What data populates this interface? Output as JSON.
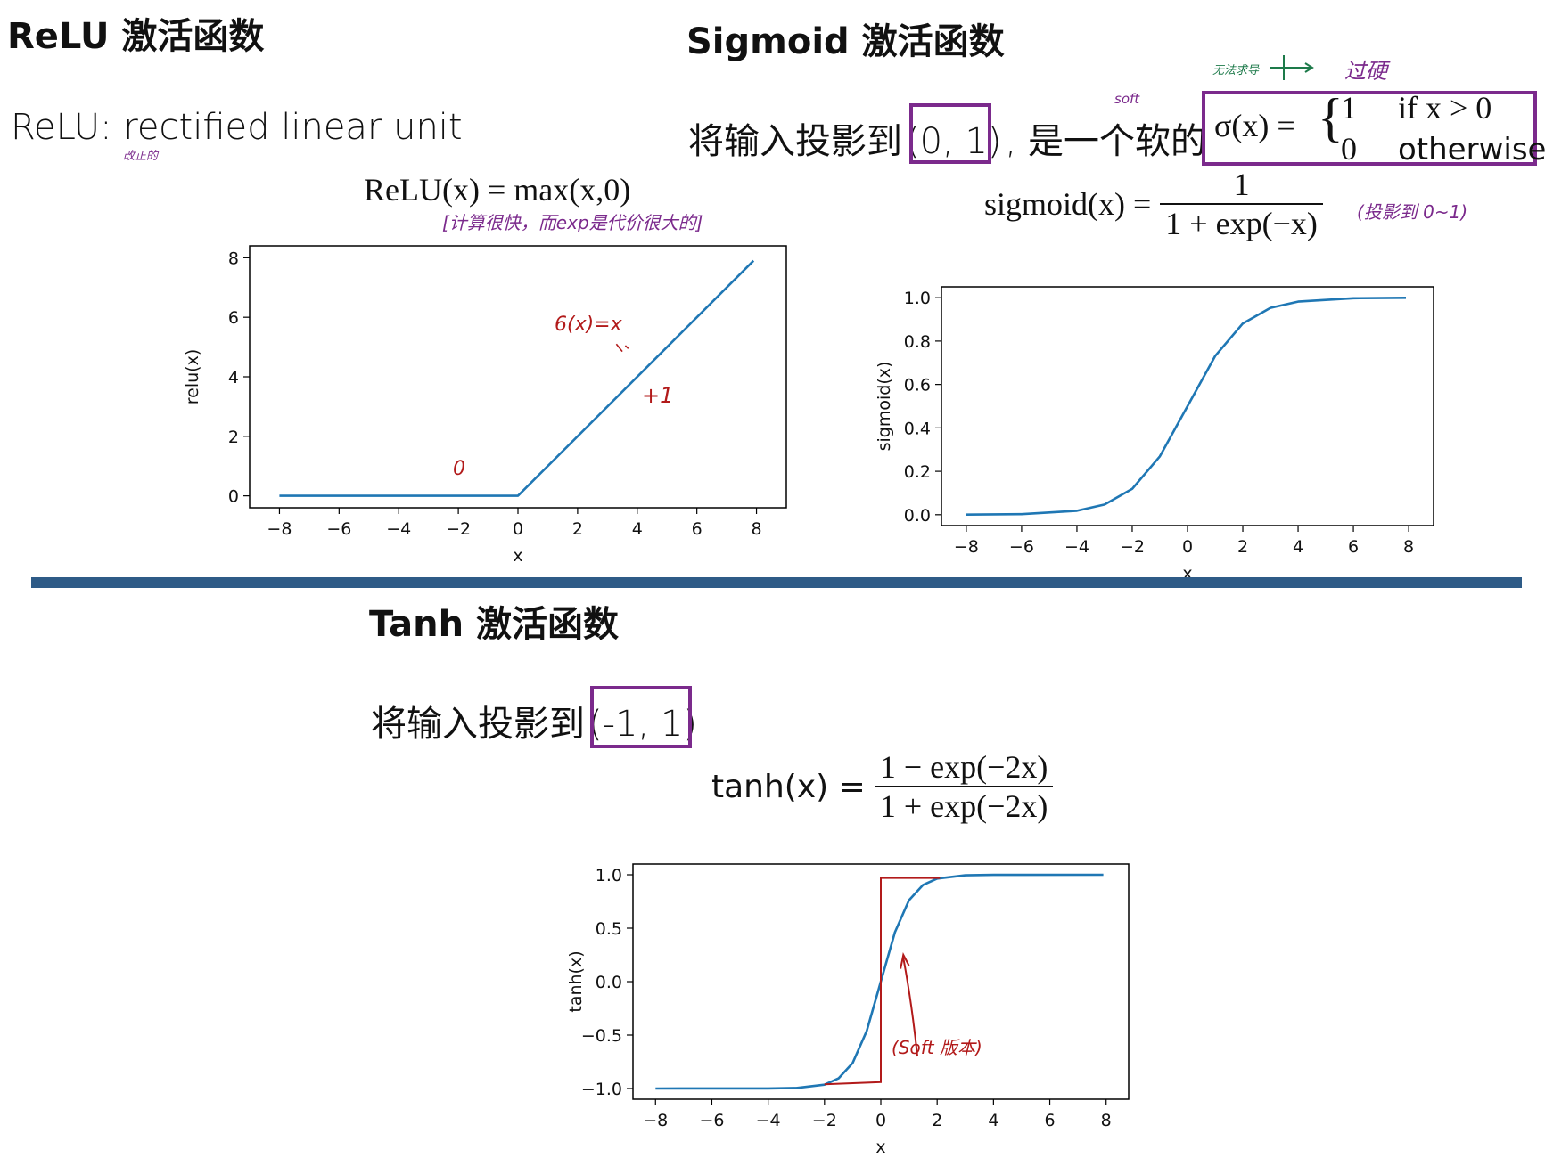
{
  "relu": {
    "heading": "ReLU 激活函数",
    "definition": "ReLU: rectified linear unit",
    "note_under": "改正的",
    "formula_lhs": "ReLU(x) = max(x,0)",
    "handwritten_note": "[计算很快，而exp是代价很大的]",
    "annot_sigma": "6(x)=x",
    "annot_plus1": "+1",
    "annot_zero": "0"
  },
  "sigmoid": {
    "heading": "Sigmoid 激活函数",
    "desc_prefix": "将输入投影到",
    "desc_range": "(0, 1)",
    "desc_suffix": ", 是一个软的",
    "note_soft": "soft",
    "note_step": "无法求导",
    "note_hard": "过硬",
    "piecewise_lhs": "σ(x) =",
    "piece1_val": "1",
    "piece1_cond": "if x > 0",
    "piece2_val": "0",
    "piece2_cond": "otherwise",
    "formula_lhs": "sigmoid(x) =",
    "formula_num": "1",
    "formula_den": "1 + exp(−x)",
    "formula_note": "(投影到 0~1)"
  },
  "tanh": {
    "heading": "Tanh 激活函数",
    "desc_prefix": "将输入投影到",
    "desc_range": "(-1, 1)",
    "formula_lhs": "tanh(x) =",
    "formula_num": "1 − exp(−2x)",
    "formula_den": "1 + exp(−2x)",
    "annot": "(Soft 版本)"
  },
  "colors": {
    "curve": "#1f77b4",
    "purple": "#7b2a8c",
    "red": "#b21a1a",
    "divider": "#2e5b87"
  },
  "chart_data": [
    {
      "type": "line",
      "xlabel": "x",
      "ylabel": "relu(x)",
      "xlim": [
        -9,
        9
      ],
      "ylim": [
        -0.4,
        8.4
      ],
      "xticks": [
        -8,
        -6,
        -4,
        -2,
        0,
        2,
        4,
        6,
        8
      ],
      "yticks": [
        0,
        2,
        4,
        6,
        8
      ],
      "xtick_labels": [
        "−8",
        "−6",
        "−4",
        "−2",
        "0",
        "2",
        "4",
        "6",
        "8"
      ],
      "ytick_labels": [
        "0",
        "2",
        "4",
        "6",
        "8"
      ],
      "series": [
        {
          "x": [
            -8,
            0,
            7.9
          ],
          "y": [
            0,
            0,
            7.9
          ]
        }
      ]
    },
    {
      "type": "line",
      "xlabel": "x",
      "ylabel": "sigmoid(x)",
      "xlim": [
        -8.9,
        8.9
      ],
      "ylim": [
        -0.05,
        1.05
      ],
      "xticks": [
        -8,
        -6,
        -4,
        -2,
        0,
        2,
        4,
        6,
        8
      ],
      "yticks": [
        0,
        0.2,
        0.4,
        0.6,
        0.8,
        1.0
      ],
      "xtick_labels": [
        "−8",
        "−6",
        "−4",
        "−2",
        "0",
        "2",
        "4",
        "6",
        "8"
      ],
      "ytick_labels": [
        "0.0",
        "0.2",
        "0.4",
        "0.6",
        "0.8",
        "1.0"
      ],
      "series": [
        {
          "x": [
            -8,
            -6,
            -4,
            -3,
            -2,
            -1,
            0,
            1,
            2,
            3,
            4,
            6,
            7.9
          ],
          "y": [
            0.0003,
            0.0025,
            0.018,
            0.047,
            0.119,
            0.269,
            0.5,
            0.731,
            0.881,
            0.953,
            0.982,
            0.9975,
            0.9996
          ]
        }
      ]
    },
    {
      "type": "line",
      "xlabel": "x",
      "ylabel": "tanh(x)",
      "xlim": [
        -8.8,
        8.8
      ],
      "ylim": [
        -1.1,
        1.1
      ],
      "xticks": [
        -8,
        -6,
        -4,
        -2,
        0,
        2,
        4,
        6,
        8
      ],
      "yticks": [
        -1.0,
        -0.5,
        0.0,
        0.5,
        1.0
      ],
      "xtick_labels": [
        "−8",
        "−6",
        "−4",
        "−2",
        "0",
        "2",
        "4",
        "6",
        "8"
      ],
      "ytick_labels": [
        "−1.0",
        "−0.5",
        "0.0",
        "0.5",
        "1.0"
      ],
      "series": [
        {
          "x": [
            -8,
            -4,
            -3,
            -2,
            -1.5,
            -1,
            -0.5,
            0,
            0.5,
            1,
            1.5,
            2,
            3,
            4,
            7.9
          ],
          "y": [
            -1,
            -0.9993,
            -0.995,
            -0.964,
            -0.905,
            -0.762,
            -0.462,
            0,
            0.462,
            0.762,
            0.905,
            0.964,
            0.995,
            0.9993,
            1
          ]
        }
      ]
    }
  ]
}
